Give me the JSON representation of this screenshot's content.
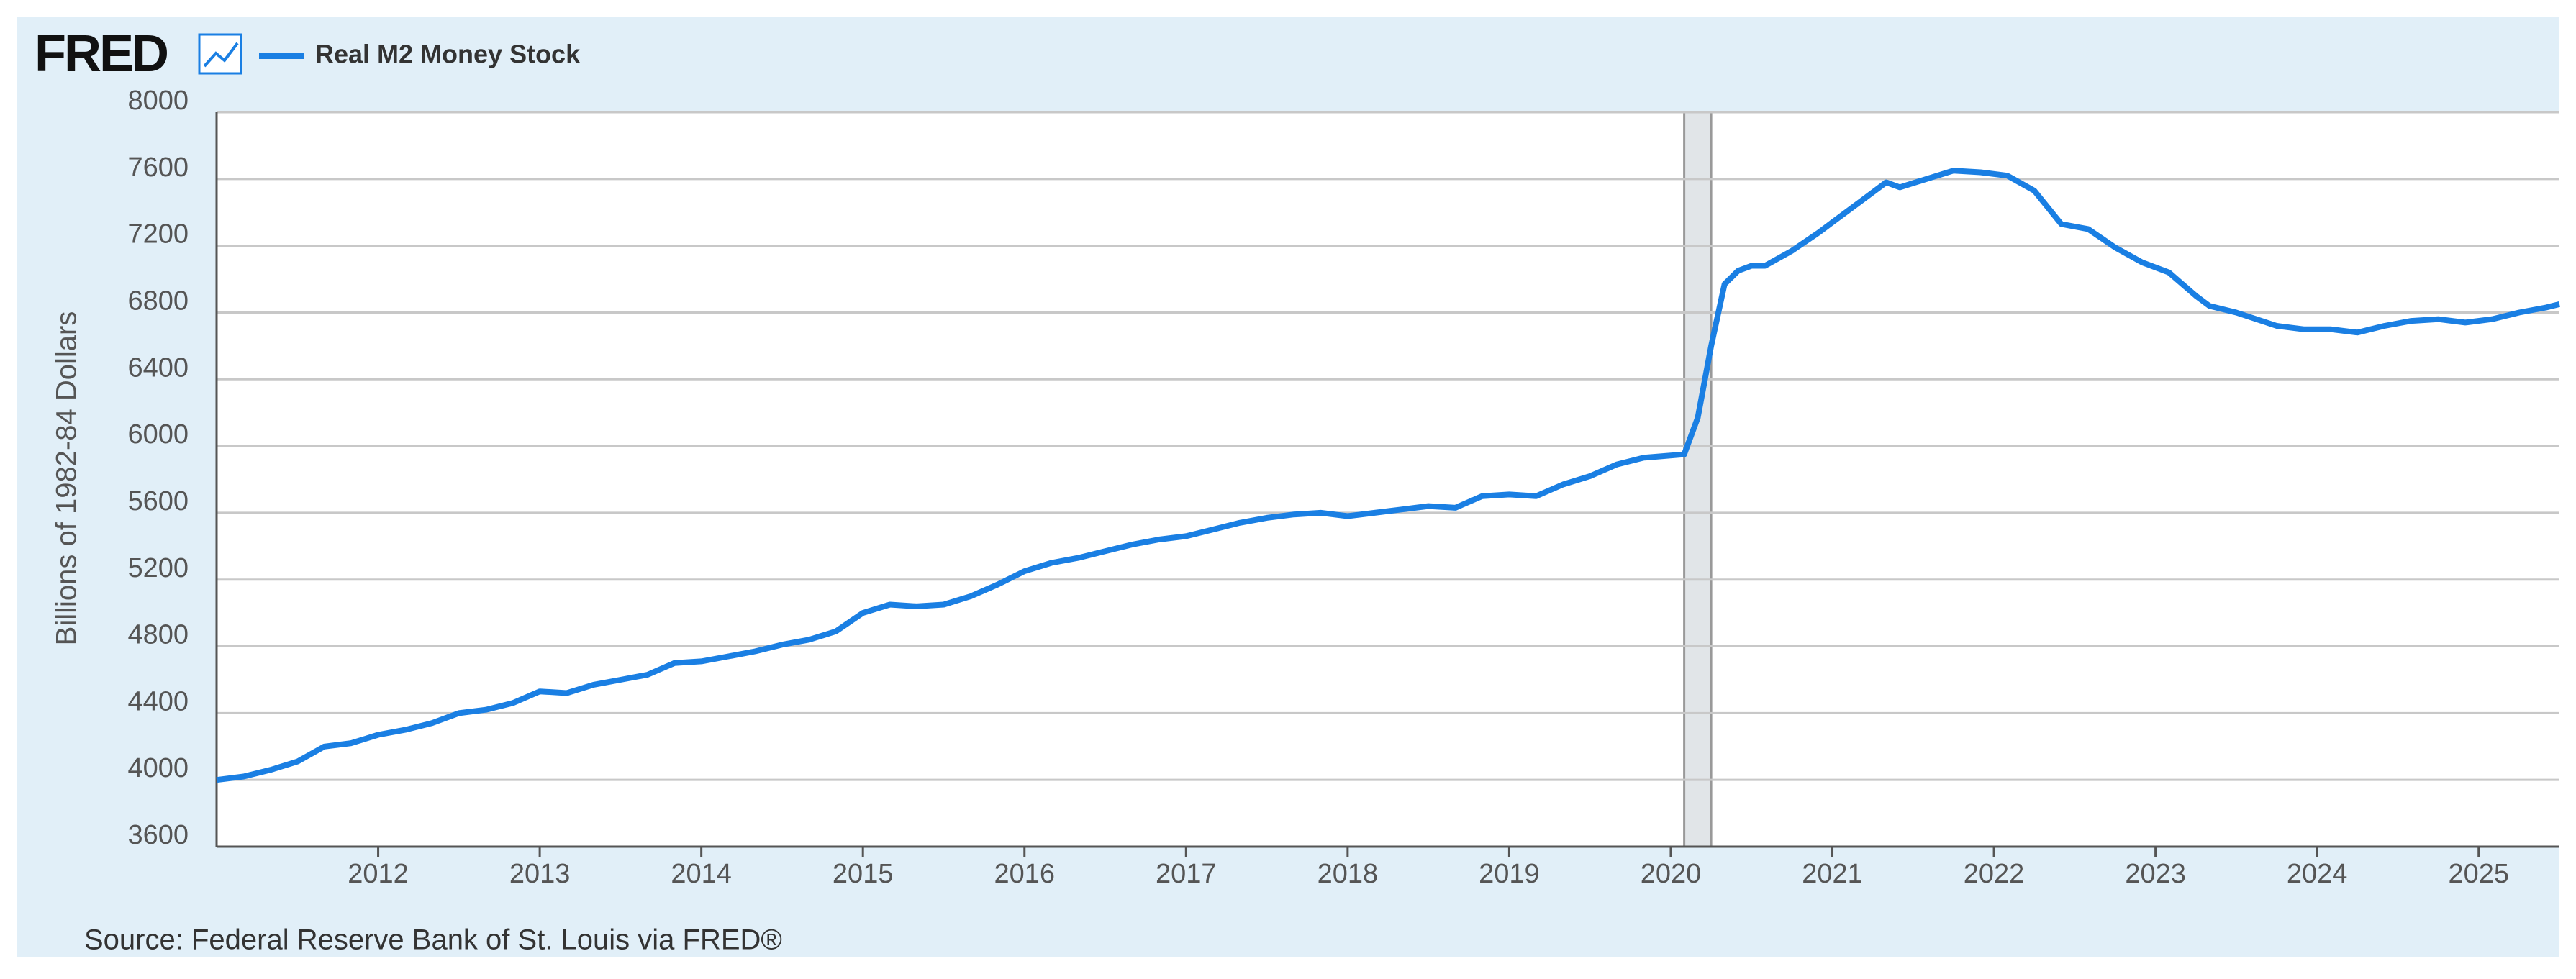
{
  "chart_data": {
    "type": "line",
    "logo": "FRED",
    "y_label": "Billions of 1982-84 Dollars",
    "source": "Source: Federal Reserve Bank of St. Louis via FRED®",
    "x": [
      2011,
      2011.167,
      2011.333,
      2011.5,
      2011.667,
      2011.833,
      2012,
      2012.167,
      2012.333,
      2012.5,
      2012.667,
      2012.833,
      2013,
      2013.167,
      2013.333,
      2013.5,
      2013.667,
      2013.833,
      2014,
      2014.167,
      2014.333,
      2014.5,
      2014.667,
      2014.833,
      2015,
      2015.167,
      2015.333,
      2015.5,
      2015.667,
      2015.833,
      2016,
      2016.167,
      2016.333,
      2016.5,
      2016.667,
      2016.833,
      2017,
      2017.167,
      2017.333,
      2017.5,
      2017.667,
      2017.833,
      2018,
      2018.167,
      2018.333,
      2018.5,
      2018.667,
      2018.833,
      2019,
      2019.167,
      2019.333,
      2019.5,
      2019.667,
      2019.833,
      2020.083,
      2020.167,
      2020.25,
      2020.333,
      2020.417,
      2020.5,
      2020.583,
      2020.75,
      2020.917,
      2021,
      2021.167,
      2021.333,
      2021.417,
      2021.583,
      2021.75,
      2021.917,
      2022.083,
      2022.25,
      2022.417,
      2022.583,
      2022.75,
      2022.917,
      2023.083,
      2023.25,
      2023.333,
      2023.5,
      2023.75,
      2023.917,
      2024.083,
      2024.25,
      2024.417,
      2024.583,
      2024.75,
      2024.917,
      2025.083,
      2025.25,
      2025.417,
      2025.5
    ],
    "series": [
      {
        "name": "Real M2 Money Stock",
        "color": "#1a7fe3",
        "values": [
          4000,
          4020,
          4060,
          4110,
          4200,
          4220,
          4270,
          4300,
          4340,
          4400,
          4420,
          4460,
          4530,
          4520,
          4570,
          4600,
          4630,
          4700,
          4710,
          4740,
          4770,
          4810,
          4840,
          4890,
          5000,
          5050,
          5040,
          5050,
          5100,
          5170,
          5250,
          5300,
          5330,
          5370,
          5410,
          5440,
          5460,
          5500,
          5540,
          5570,
          5590,
          5600,
          5580,
          5600,
          5620,
          5640,
          5630,
          5700,
          5710,
          5700,
          5770,
          5820,
          5890,
          5930,
          5950,
          6170,
          6600,
          6970,
          7050,
          7080,
          7080,
          7170,
          7280,
          7340,
          7460,
          7580,
          7550,
          7600,
          7650,
          7640,
          7620,
          7530,
          7330,
          7300,
          7190,
          7100,
          7040,
          6900,
          6840,
          6800,
          6720,
          6700,
          6700,
          6680,
          6720,
          6750,
          6760,
          6740,
          6760,
          6800,
          6830,
          6850
        ]
      }
    ],
    "recession_shading": [
      [
        2020.083,
        2020.25
      ]
    ],
    "xlim": [
      2011,
      2025.5
    ],
    "xticks": [
      2012,
      2013,
      2014,
      2015,
      2016,
      2017,
      2018,
      2019,
      2020,
      2021,
      2022,
      2023,
      2024,
      2025
    ],
    "ylim": [
      3600,
      8000
    ],
    "yticks": [
      3600,
      4000,
      4400,
      4800,
      5200,
      5600,
      6000,
      6400,
      6800,
      7200,
      7600,
      8000
    ],
    "grid": true
  }
}
